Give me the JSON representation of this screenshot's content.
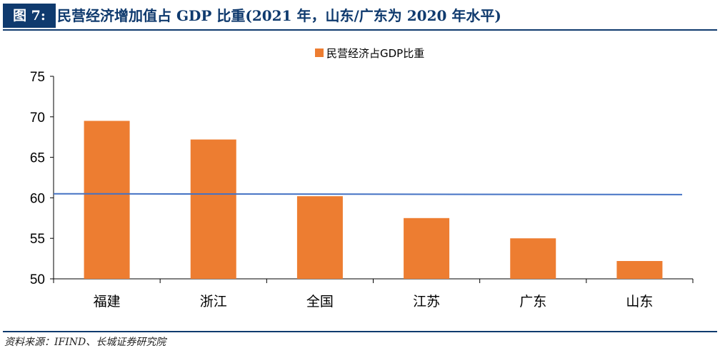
{
  "figure": {
    "label": "图 7:",
    "title": "民营经济增加值占 GDP 比重(2021 年，山东/广东为 2020 年水平)"
  },
  "source": "资料来源：IFIND、长城证券研究院",
  "colors": {
    "bar": "#ed7d31",
    "line": "#4472c4",
    "axis": "#000000",
    "navy": "#0f3a6e"
  },
  "chart_data": {
    "type": "bar",
    "title": "",
    "xlabel": "",
    "ylabel": "",
    "categories": [
      "福建",
      "浙江",
      "全国",
      "江苏",
      "广东",
      "山东"
    ],
    "series": [
      {
        "name": "民营经济占GDP比重",
        "values": [
          69.5,
          67.2,
          60.2,
          57.5,
          55.0,
          52.2
        ]
      }
    ],
    "reference_line": {
      "y_start": 60.5,
      "y_end": 60.4,
      "color": "#4472c4"
    },
    "ylim": [
      50,
      75
    ],
    "yticks": [
      50,
      55,
      60,
      65,
      70,
      75
    ],
    "grid": false,
    "legend_position": "top-center"
  }
}
